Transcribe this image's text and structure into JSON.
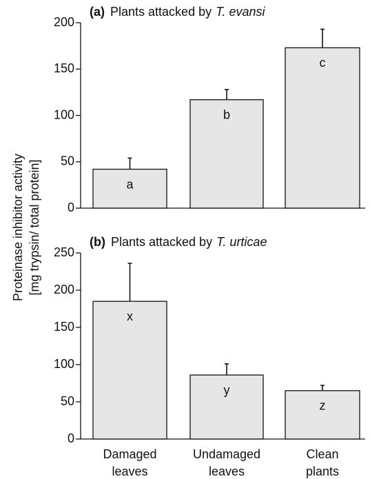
{
  "ylabel": [
    "Proteinase inhibitor activity",
    "[mg trypsin/ total protein]"
  ],
  "chart_data": [
    {
      "type": "bar",
      "panel": "(a)",
      "title": "Plants attacked by",
      "title_species": "T. evansi",
      "categories": [
        null,
        null,
        null
      ],
      "values": [
        42,
        117,
        173
      ],
      "errors": [
        12,
        11,
        20
      ],
      "annotations": [
        "a",
        "b",
        "c"
      ],
      "color": "#e6e6e6",
      "ylim": [
        0,
        200
      ],
      "yticks": [
        0,
        50,
        100,
        150,
        200
      ]
    },
    {
      "type": "bar",
      "panel": "(b)",
      "title": "Plants attacked by",
      "title_species": "T. urticae",
      "categories": [
        "Damaged leaves",
        "Undamaged leaves",
        "Clean plants"
      ],
      "values": [
        185,
        86,
        65
      ],
      "errors": [
        51,
        15,
        7
      ],
      "annotations": [
        "x",
        "y",
        "z"
      ],
      "color": "#e6e6e6",
      "ylim": [
        0,
        250
      ],
      "yticks": [
        0,
        50,
        100,
        150,
        200,
        250
      ]
    }
  ]
}
